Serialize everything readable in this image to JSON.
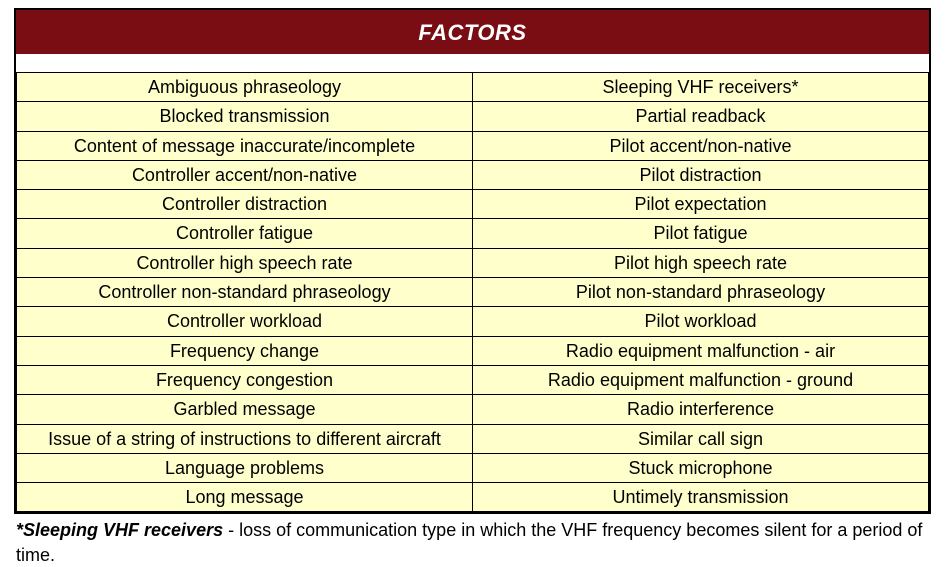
{
  "header": {
    "title": "FACTORS"
  },
  "table": {
    "background_color": "#ffffcc",
    "header_bg_color": "#7a0c14",
    "header_text_color": "#ffffff",
    "border_color": "#000000",
    "text_color": "#000000",
    "font_size": 18,
    "header_font_size": 22,
    "rows": [
      {
        "left": "Ambiguous phraseology",
        "right": "Sleeping VHF receivers*"
      },
      {
        "left": "Blocked transmission",
        "right": "Partial readback"
      },
      {
        "left": "Content of message inaccurate/incomplete",
        "right": "Pilot accent/non-native"
      },
      {
        "left": "Controller accent/non-native",
        "right": "Pilot distraction"
      },
      {
        "left": "Controller distraction",
        "right": "Pilot expectation"
      },
      {
        "left": "Controller fatigue",
        "right": "Pilot fatigue"
      },
      {
        "left": "Controller high speech rate",
        "right": "Pilot high speech rate"
      },
      {
        "left": "Controller non-standard phraseology",
        "right": "Pilot non-standard phraseology"
      },
      {
        "left": "Controller workload",
        "right": "Pilot workload"
      },
      {
        "left": "Frequency change",
        "right": "Radio equipment malfunction - air"
      },
      {
        "left": "Frequency congestion",
        "right": "Radio equipment malfunction - ground"
      },
      {
        "left": "Garbled message",
        "right": "Radio interference"
      },
      {
        "left": "Issue of a string of instructions to different aircraft",
        "right": "Similar call sign"
      },
      {
        "left": "Language problems",
        "right": "Stuck microphone"
      },
      {
        "left": "Long message",
        "right": "Untimely transmission"
      }
    ]
  },
  "footnote": {
    "term": "*Sleeping VHF receivers",
    "definition": " - loss of communication type in which the VHF frequency becomes silent for a period of time."
  }
}
